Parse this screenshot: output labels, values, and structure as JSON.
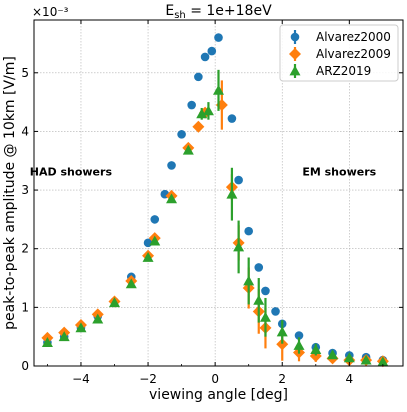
{
  "chart_data": {
    "type": "scatter",
    "title": "E$_{sh}$ = 1e+18eV",
    "title_parts": {
      "main": "E",
      "sub": "sh",
      "rest": " = 1e+18eV"
    },
    "xlabel": "viewing angle [deg]",
    "ylabel": "peak-to-peak amplitude @ 10km [V/m]",
    "y_multiplier": "×10⁻³",
    "xlim": [
      -5.4,
      5.6
    ],
    "ylim": [
      0,
      5.9
    ],
    "x_ticks": [
      -4,
      -2,
      0,
      2,
      4
    ],
    "x_tick_labels": [
      "−4",
      "−2",
      "0",
      "2",
      "4"
    ],
    "y_ticks": [
      0,
      1,
      2,
      3,
      4,
      5
    ],
    "y_tick_labels": [
      "0",
      "1",
      "2",
      "3",
      "4",
      "5"
    ],
    "grid": true,
    "legend_position": "top-right",
    "annotations": [
      {
        "text": "HAD showers",
        "x": -4.3,
        "y": 3.25
      },
      {
        "text": "EM showers",
        "x": 3.7,
        "y": 3.25
      }
    ],
    "series": [
      {
        "name": "Alvarez2000",
        "color": "#1f77b4",
        "marker": "circle",
        "points": [
          [
            -5.0,
            0.4,
            0
          ],
          [
            -4.5,
            0.5,
            0
          ],
          [
            -4.0,
            0.65,
            0
          ],
          [
            -3.5,
            0.85,
            0
          ],
          [
            -3.0,
            1.1,
            0
          ],
          [
            -2.5,
            1.52,
            0
          ],
          [
            -2.0,
            2.1,
            0
          ],
          [
            -1.8,
            2.5,
            0
          ],
          [
            -1.5,
            2.93,
            0
          ],
          [
            -1.3,
            3.42,
            0
          ],
          [
            -1.0,
            3.95,
            0
          ],
          [
            -0.7,
            4.45,
            0
          ],
          [
            -0.5,
            4.93,
            0
          ],
          [
            -0.3,
            5.27,
            0
          ],
          [
            -0.1,
            5.37,
            0
          ],
          [
            0.1,
            5.6,
            0
          ],
          [
            0.5,
            4.22,
            0
          ],
          [
            0.7,
            3.17,
            0
          ],
          [
            1.0,
            2.3,
            0
          ],
          [
            1.3,
            1.68,
            0
          ],
          [
            1.5,
            1.28,
            0
          ],
          [
            1.8,
            0.93,
            0
          ],
          [
            2.0,
            0.72,
            0
          ],
          [
            2.5,
            0.52,
            0
          ],
          [
            3.0,
            0.32,
            0
          ],
          [
            3.5,
            0.22,
            0
          ],
          [
            4.0,
            0.18,
            0
          ],
          [
            4.5,
            0.15,
            0
          ],
          [
            5.0,
            0.1,
            0
          ]
        ]
      },
      {
        "name": "Alvarez2009",
        "color": "#ff7f0e",
        "marker": "diamond",
        "points": [
          [
            -5.0,
            0.48,
            0
          ],
          [
            -4.5,
            0.57,
            0
          ],
          [
            -4.0,
            0.7,
            0
          ],
          [
            -3.5,
            0.88,
            0
          ],
          [
            -3.0,
            1.1,
            0
          ],
          [
            -2.5,
            1.45,
            0
          ],
          [
            -2.0,
            1.88,
            0
          ],
          [
            -1.8,
            2.18,
            0
          ],
          [
            -1.3,
            2.9,
            0
          ],
          [
            -0.8,
            3.72,
            0
          ],
          [
            -0.5,
            4.08,
            0
          ],
          [
            -0.3,
            4.32,
            0.08
          ],
          [
            0.2,
            4.45,
            0.42
          ],
          [
            0.5,
            3.05,
            0.22
          ],
          [
            0.7,
            2.1,
            0.3
          ],
          [
            1.0,
            1.33,
            0.35
          ],
          [
            1.3,
            0.93,
            0.38
          ],
          [
            1.5,
            0.65,
            0.35
          ],
          [
            2.0,
            0.37,
            0.28
          ],
          [
            2.5,
            0.23,
            0.15
          ],
          [
            3.0,
            0.17,
            0.1
          ],
          [
            3.5,
            0.13,
            0.08
          ],
          [
            4.0,
            0.1,
            0.06
          ],
          [
            4.5,
            0.1,
            0.05
          ],
          [
            5.0,
            0.08,
            0.04
          ]
        ]
      },
      {
        "name": "ARZ2019",
        "color": "#2ca02c",
        "marker": "triangle",
        "points": [
          [
            -5.0,
            0.4,
            0
          ],
          [
            -4.5,
            0.5,
            0
          ],
          [
            -4.0,
            0.65,
            0
          ],
          [
            -3.5,
            0.8,
            0
          ],
          [
            -3.0,
            1.08,
            0
          ],
          [
            -2.5,
            1.4,
            0
          ],
          [
            -2.0,
            1.85,
            0
          ],
          [
            -1.8,
            2.13,
            0
          ],
          [
            -1.3,
            2.85,
            0
          ],
          [
            -0.8,
            3.68,
            0
          ],
          [
            -0.4,
            4.3,
            0.1
          ],
          [
            -0.2,
            4.35,
            0.15
          ],
          [
            0.1,
            4.7,
            0.35
          ],
          [
            0.5,
            2.93,
            0.45
          ],
          [
            0.7,
            2.03,
            0.45
          ],
          [
            1.0,
            1.45,
            0.4
          ],
          [
            1.3,
            1.12,
            0.38
          ],
          [
            1.5,
            0.83,
            0.33
          ],
          [
            2.0,
            0.58,
            0.2
          ],
          [
            2.5,
            0.35,
            0.14
          ],
          [
            3.0,
            0.28,
            0.1
          ],
          [
            3.5,
            0.19,
            0.07
          ],
          [
            4.0,
            0.14,
            0.05
          ],
          [
            4.5,
            0.1,
            0.04
          ],
          [
            5.0,
            0.07,
            0.03
          ]
        ]
      }
    ]
  }
}
